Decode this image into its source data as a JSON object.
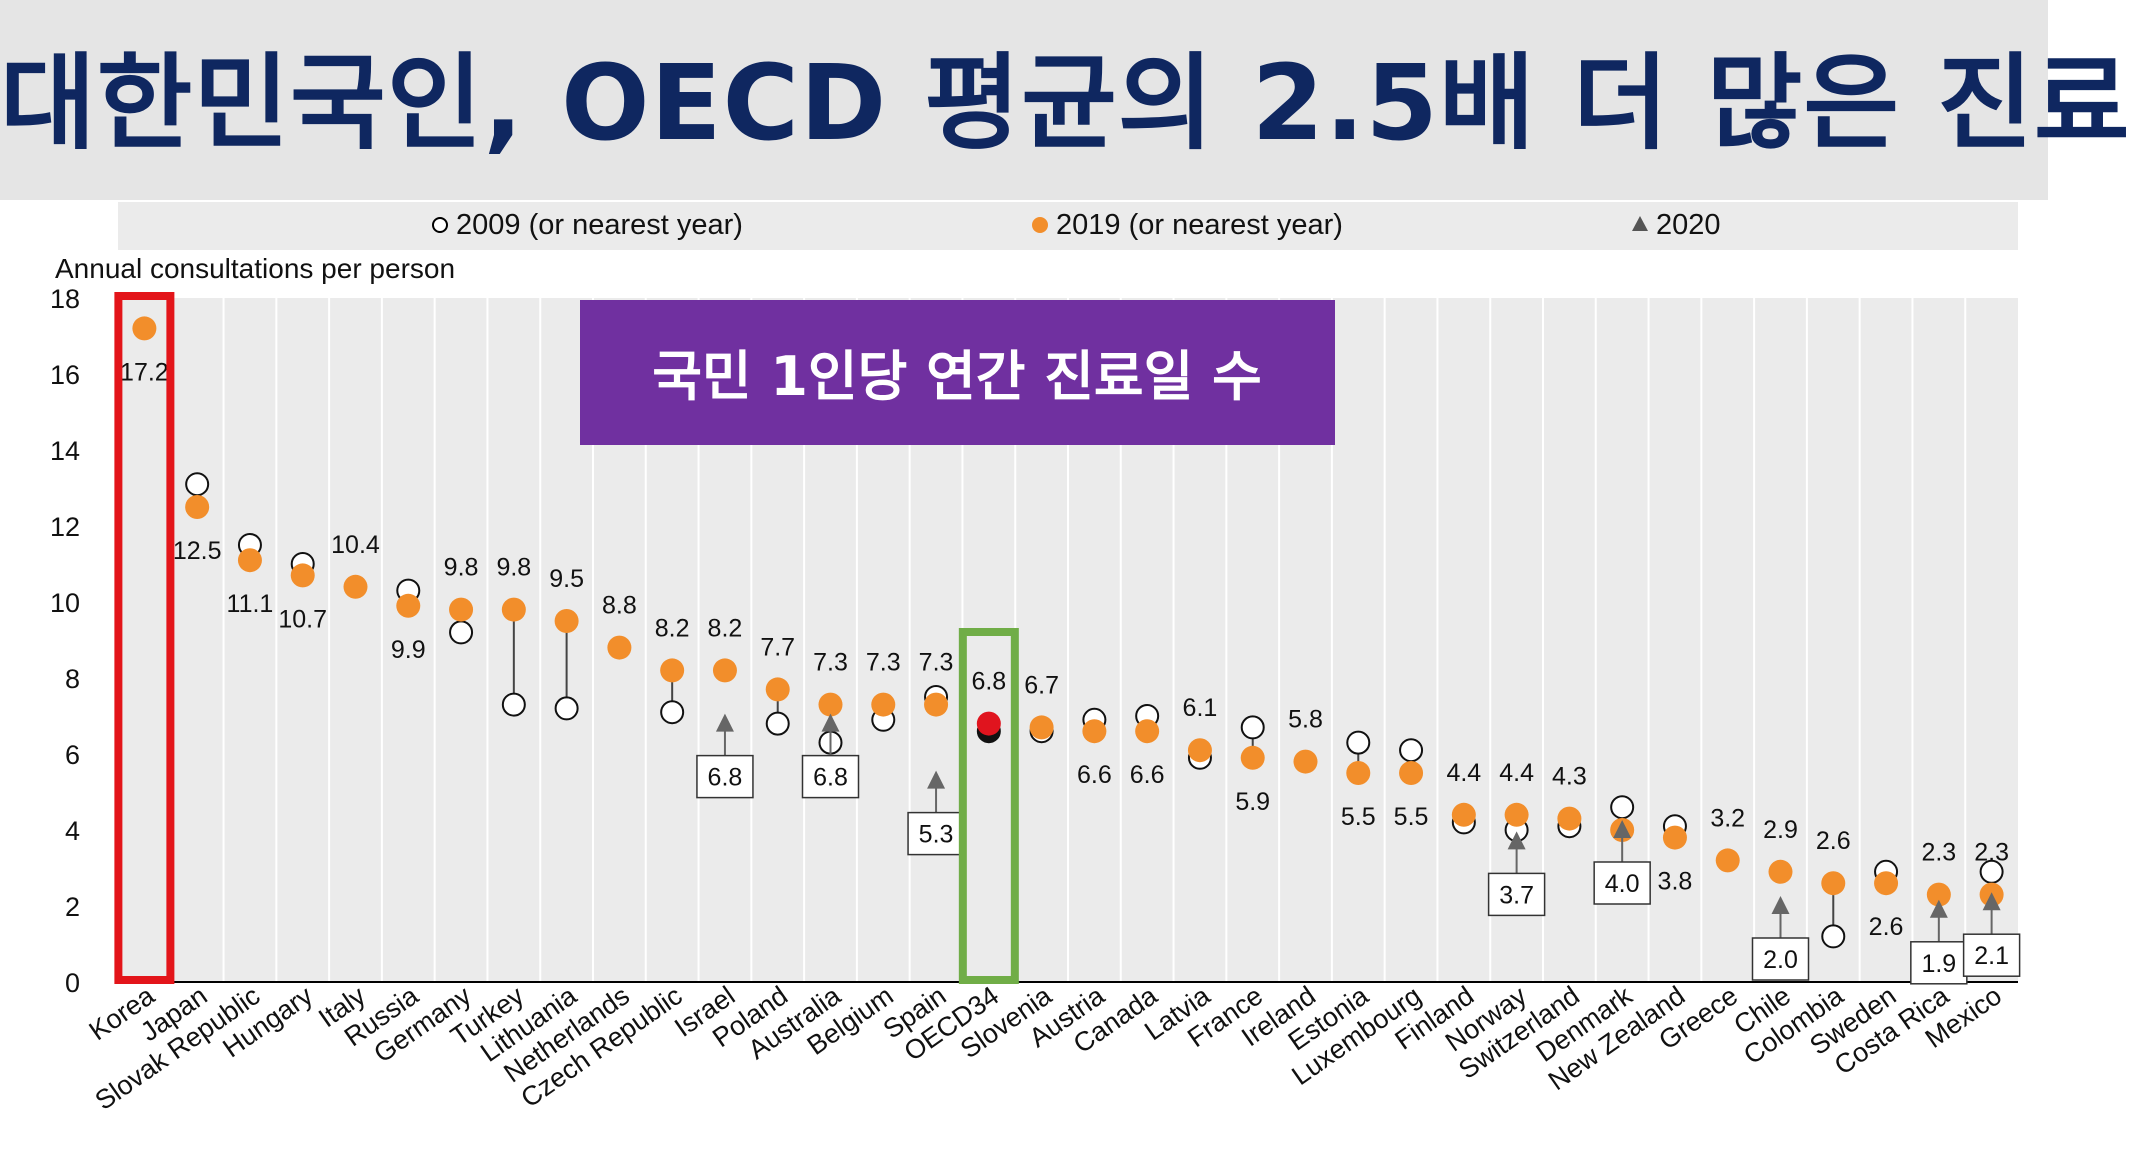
{
  "banner": {
    "title": "대한민국인, OECD 평균의 2.5배 더 많은 진료"
  },
  "badge": {
    "text": "국민 1인당 연간 진료일 수",
    "color": "#7030a0"
  },
  "colors": {
    "orange": "#f28e2b",
    "oecd": "#e0141e",
    "korea_box": "#e3151a",
    "oecd_box": "#70ad47"
  },
  "chart_data": {
    "type": "scatter",
    "ylabel": "Annual consultations per person",
    "ylim": [
      0,
      18
    ],
    "yticks": [
      0,
      2,
      4,
      6,
      8,
      10,
      12,
      14,
      16,
      18
    ],
    "legend": [
      {
        "label": "2009 (or nearest year)",
        "marker": "open-circle"
      },
      {
        "label": "2019 (or nearest year)",
        "marker": "orange-dot"
      },
      {
        "label": "2020",
        "marker": "triangle"
      }
    ],
    "categories": [
      "Korea",
      "Japan",
      "Slovak Republic",
      "Hungary",
      "Italy",
      "Russia",
      "Germany",
      "Turkey",
      "Lithuania",
      "Netherlands",
      "Czech Republic",
      "Israel",
      "Poland",
      "Australia",
      "Belgium",
      "Spain",
      "OECD34",
      "Slovenia",
      "Austria",
      "Canada",
      "Latvia",
      "France",
      "Ireland",
      "Estonia",
      "Luxembourg",
      "Finland",
      "Norway",
      "Switzerland",
      "Denmark",
      "New Zealand",
      "Greece",
      "Chile",
      "Colombia",
      "Sweden",
      "Costa Rica",
      "Mexico"
    ],
    "series": [
      {
        "name": "2009 (or nearest year)",
        "values": [
          null,
          13.1,
          11.5,
          11.0,
          null,
          10.3,
          9.2,
          7.3,
          7.2,
          null,
          7.1,
          null,
          6.8,
          6.3,
          6.9,
          7.5,
          6.6,
          6.6,
          6.9,
          7.0,
          5.9,
          6.7,
          null,
          6.3,
          6.1,
          4.2,
          4.0,
          4.1,
          4.6,
          4.1,
          null,
          null,
          1.2,
          2.9,
          null,
          2.9
        ]
      },
      {
        "name": "2019 (or nearest year)",
        "values": [
          17.2,
          12.5,
          11.1,
          10.7,
          10.4,
          9.9,
          9.8,
          9.8,
          9.5,
          8.8,
          8.2,
          8.2,
          7.7,
          7.3,
          7.3,
          7.3,
          6.8,
          6.7,
          6.6,
          6.6,
          6.1,
          5.9,
          5.8,
          5.5,
          5.5,
          4.4,
          4.4,
          4.3,
          4.0,
          3.8,
          3.2,
          2.9,
          2.6,
          2.6,
          2.3,
          2.3
        ]
      },
      {
        "name": "2020",
        "values": [
          null,
          null,
          null,
          null,
          null,
          null,
          null,
          null,
          null,
          null,
          null,
          6.8,
          null,
          6.8,
          null,
          5.3,
          null,
          null,
          null,
          null,
          null,
          null,
          null,
          null,
          null,
          null,
          3.7,
          null,
          4.0,
          null,
          null,
          2.0,
          null,
          null,
          1.9,
          2.1
        ]
      }
    ],
    "value_labels": [
      {
        "text": "17.2",
        "pos": "below"
      },
      {
        "text": "12.5",
        "pos": "below"
      },
      {
        "text": "11.1",
        "pos": "below"
      },
      {
        "text": "10.7",
        "pos": "below"
      },
      {
        "text": "10.4",
        "pos": "above"
      },
      {
        "text": "9.9",
        "pos": "below"
      },
      {
        "text": "9.8",
        "pos": "above"
      },
      {
        "text": "9.8",
        "pos": "above"
      },
      {
        "text": "9.5",
        "pos": "above"
      },
      {
        "text": "8.8",
        "pos": "above"
      },
      {
        "text": "8.2",
        "pos": "above"
      },
      {
        "text": "8.2",
        "pos": "above"
      },
      {
        "text": "7.7",
        "pos": "above"
      },
      {
        "text": "7.3",
        "pos": "above"
      },
      {
        "text": "7.3",
        "pos": "above"
      },
      {
        "text": "7.3",
        "pos": "above"
      },
      {
        "text": "6.8",
        "pos": "above"
      },
      {
        "text": "6.7",
        "pos": "above"
      },
      {
        "text": "6.6",
        "pos": "below"
      },
      {
        "text": "6.6",
        "pos": "below"
      },
      {
        "text": "6.1",
        "pos": "above"
      },
      {
        "text": "5.9",
        "pos": "below"
      },
      {
        "text": "5.8",
        "pos": "above"
      },
      {
        "text": "5.5",
        "pos": "below"
      },
      {
        "text": "5.5",
        "pos": "below"
      },
      {
        "text": "4.4",
        "pos": "above"
      },
      {
        "text": "4.4",
        "pos": "above"
      },
      {
        "text": "4.3",
        "pos": "above"
      },
      {
        "text": null,
        "pos": "none"
      },
      {
        "text": "3.8",
        "pos": "below"
      },
      {
        "text": "3.2",
        "pos": "above"
      },
      {
        "text": "2.9",
        "pos": "above"
      },
      {
        "text": "2.6",
        "pos": "above"
      },
      {
        "text": "2.6",
        "pos": "below"
      },
      {
        "text": "2.3",
        "pos": "above"
      },
      {
        "text": "2.3",
        "pos": "above"
      }
    ],
    "callouts_2020": [
      {
        "index": 11,
        "text": "6.8"
      },
      {
        "index": 13,
        "text": "6.8"
      },
      {
        "index": 15,
        "text": "5.3"
      },
      {
        "index": 26,
        "text": "3.7"
      },
      {
        "index": 28,
        "text": "4.0"
      },
      {
        "index": 31,
        "text": "2.0"
      },
      {
        "index": 34,
        "text": "1.9"
      },
      {
        "index": 35,
        "text": "2.1"
      }
    ],
    "highlights": [
      {
        "index": 0,
        "label": "Korea"
      },
      {
        "index": 16,
        "label": "OECD34"
      }
    ]
  }
}
